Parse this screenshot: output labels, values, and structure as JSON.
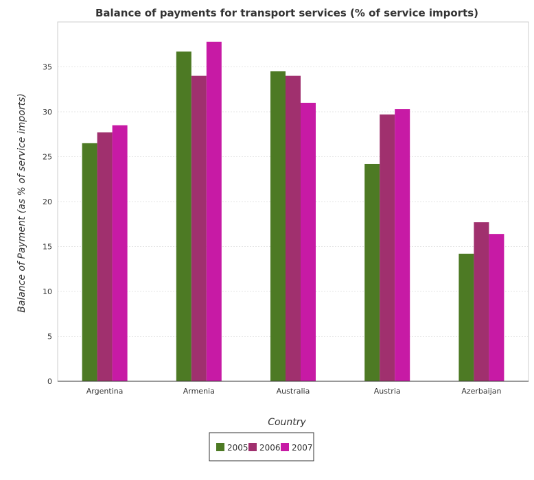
{
  "chart_data": {
    "type": "bar",
    "title": "Balance of payments for transport services (% of service imports)",
    "xlabel": "Country",
    "ylabel": "Balance of Payment (as % of service imports)",
    "categories": [
      "Argentina",
      "Armenia",
      "Australia",
      "Austria",
      "Azerbaijan"
    ],
    "series": [
      {
        "name": "2005",
        "color": "#4d7a24",
        "values": [
          26.5,
          36.7,
          34.5,
          24.2,
          14.2
        ]
      },
      {
        "name": "2006",
        "color": "#a0306e",
        "values": [
          27.7,
          34.0,
          34.0,
          29.7,
          17.7
        ]
      },
      {
        "name": "2007",
        "color": "#c71aa5",
        "values": [
          28.5,
          37.8,
          31.0,
          30.3,
          16.4
        ]
      }
    ],
    "ylim": [
      0,
      40
    ],
    "yticks": [
      0,
      5,
      10,
      15,
      20,
      25,
      30,
      35
    ],
    "grid": true,
    "legend_position": "bottom-center"
  }
}
